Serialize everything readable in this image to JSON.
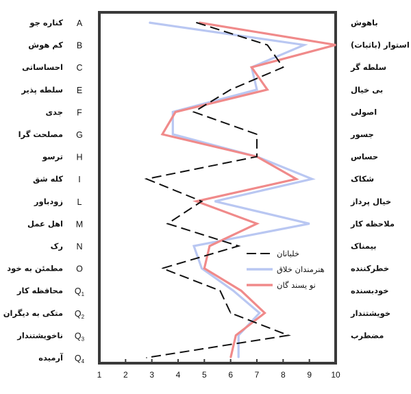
{
  "chart_data": {
    "type": "line",
    "xlim": [
      1,
      10
    ],
    "x_ticks": [
      "1",
      "2",
      "3",
      "4",
      "5",
      "6",
      "7",
      "8",
      "9",
      "10"
    ],
    "factors": [
      {
        "code": "A",
        "code_sub": "",
        "left": "کناره جو",
        "right": "باهوش"
      },
      {
        "code": "B",
        "code_sub": "",
        "left": "کم هوش",
        "right": "استوار (باثبات)"
      },
      {
        "code": "C",
        "code_sub": "",
        "left": "احساساتی",
        "right": "سلطه گر"
      },
      {
        "code": "E",
        "code_sub": "",
        "left": "سلطه پذیر",
        "right": "بی خیال"
      },
      {
        "code": "F",
        "code_sub": "",
        "left": "جدی",
        "right": "اصولی"
      },
      {
        "code": "G",
        "code_sub": "",
        "left": "مصلحت گرا",
        "right": "جسور"
      },
      {
        "code": "H",
        "code_sub": "",
        "left": "ترسو",
        "right": "حساس"
      },
      {
        "code": "I",
        "code_sub": "",
        "left": "کله شق",
        "right": "شکاک"
      },
      {
        "code": "L",
        "code_sub": "",
        "left": "زودباور",
        "right": "خیال پرداز"
      },
      {
        "code": "M",
        "code_sub": "",
        "left": "اهل عمل",
        "right": "ملاحظه کار"
      },
      {
        "code": "N",
        "code_sub": "",
        "left": "رک",
        "right": "بیمناک"
      },
      {
        "code": "O",
        "code_sub": "",
        "left": "مطمئن به خود",
        "right": "خطرکننده"
      },
      {
        "code": "Q",
        "code_sub": "1",
        "left": "محافظه کار",
        "right": "خودبسنده"
      },
      {
        "code": "Q",
        "code_sub": "2",
        "left": "متکی به دیگران",
        "right": "خویشتندار"
      },
      {
        "code": "Q",
        "code_sub": "3",
        "left": "ناخویشتندار",
        "right": "مضطرب"
      },
      {
        "code": "Q",
        "code_sub": "4",
        "left": "آرمیده",
        "right": ""
      }
    ],
    "right_labels_offset": true,
    "series": [
      {
        "name": "خلبانان",
        "color": "#111111",
        "dash": true,
        "values": [
          4.7,
          7.4,
          8.0,
          6.0,
          4.6,
          7.0,
          7.0,
          2.8,
          4.9,
          3.6,
          6.3,
          3.4,
          5.6,
          6.0,
          8.2,
          2.8
        ]
      },
      {
        "name": "هنرمندان خلاق",
        "color": "#b9c7f2",
        "dash": false,
        "values": [
          2.9,
          8.8,
          6.8,
          7.0,
          3.8,
          3.8,
          7.0,
          9.1,
          5.4,
          9.0,
          4.6,
          4.9,
          6.1,
          7.1,
          6.3,
          6.3
        ]
      },
      {
        "name": "نویسندگان",
        "color": "#f08a8a",
        "dash": false,
        "values": [
          4.8,
          10.0,
          6.8,
          7.4,
          3.9,
          3.4,
          7.0,
          8.5,
          4.7,
          7.0,
          5.2,
          5.0,
          6.4,
          7.3,
          6.2,
          6.0
        ]
      }
    ],
    "legend": [
      {
        "label": "خلبانان"
      },
      {
        "label": "هنرمندان خلاق"
      },
      {
        "label": "نو یسند گان"
      }
    ],
    "legend_position": "lower-right inside"
  }
}
